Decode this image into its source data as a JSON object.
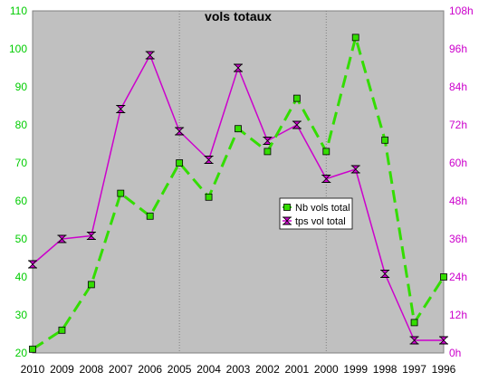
{
  "chart_data": {
    "type": "line",
    "title": "vols totaux",
    "categories": [
      "2010",
      "2009",
      "2008",
      "2007",
      "2006",
      "2005",
      "2004",
      "2003",
      "2002",
      "2001",
      "2000",
      "1999",
      "1998",
      "1997",
      "1996"
    ],
    "left_axis": {
      "ylim": [
        20,
        110
      ],
      "ticks": [
        "20",
        "30",
        "40",
        "50",
        "60",
        "70",
        "80",
        "90",
        "100",
        "110"
      ],
      "color": "#00cc00"
    },
    "right_axis": {
      "ylim": [
        0,
        108
      ],
      "ticks": [
        "0h",
        "12h",
        "24h",
        "36h",
        "48h",
        "60h",
        "72h",
        "84h",
        "96h",
        "108h"
      ],
      "color": "#cc00cc"
    },
    "series": [
      {
        "name": "Nb vols total",
        "axis": "left",
        "color": "#33dd00",
        "line_style": "dashed",
        "marker": "square",
        "values": [
          21,
          26,
          38,
          62,
          56,
          70,
          61,
          79,
          73,
          87,
          73,
          103,
          76,
          28,
          40
        ]
      },
      {
        "name": "tps vol total",
        "axis": "right",
        "color": "#cc00cc",
        "line_style": "solid",
        "marker": "hourglass",
        "values": [
          28,
          36,
          37,
          77,
          94,
          70,
          61,
          90,
          67,
          72,
          55,
          58,
          25,
          4,
          4
        ]
      }
    ],
    "plot_background": "#c0c0c0",
    "vertical_gridlines_at": [
      "2005",
      "2000"
    ],
    "legend_position": "center-right"
  }
}
